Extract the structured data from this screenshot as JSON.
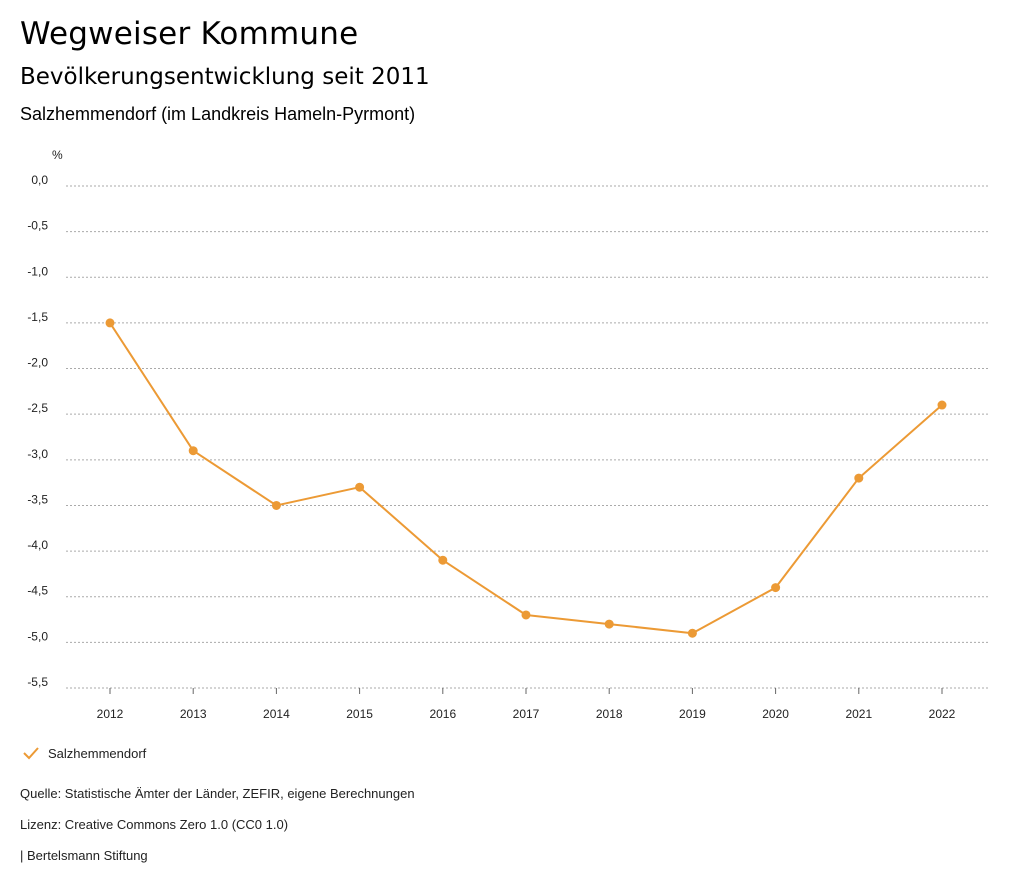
{
  "header": {
    "title": "Wegweiser Kommune",
    "subtitle": "Bevölkerungsentwicklung seit 2011",
    "region": "Salzhemmendorf (im Landkreis Hameln-Pyrmont)"
  },
  "legend": {
    "label": "Salzhemmendorf"
  },
  "footer": {
    "source": "Quelle: Statistische Ämter der Länder, ZEFIR, eigene Berechnungen",
    "license": "Lizenz: Creative Commons Zero 1.0 (CC0 1.0)",
    "publisher": "| Bertelsmann Stiftung"
  },
  "colors": {
    "series": "#EC9A35",
    "grid": "#AAAAAA",
    "text": "#222222"
  },
  "chart_data": {
    "type": "line",
    "title": "Bevölkerungsentwicklung seit 2011",
    "ylabel": "%",
    "xlabel": "",
    "ylim": [
      -5.5,
      0.0
    ],
    "yticks": [
      0.0,
      -0.5,
      -1.0,
      -1.5,
      -2.0,
      -2.5,
      -3.0,
      -3.5,
      -4.0,
      -4.5,
      -5.0,
      -5.5
    ],
    "ytick_labels": [
      "0,0",
      "-0,5",
      "-1,0",
      "-1,5",
      "-2,0",
      "-2,5",
      "-3,0",
      "-3,5",
      "-4,0",
      "-4,5",
      "-5,0",
      "-5,5"
    ],
    "categories": [
      "2012",
      "2013",
      "2014",
      "2015",
      "2016",
      "2017",
      "2018",
      "2019",
      "2020",
      "2021",
      "2022"
    ],
    "grid": true,
    "legend": "bottom-left",
    "series": [
      {
        "name": "Salzhemmendorf",
        "values": [
          -1.5,
          -2.9,
          -3.5,
          -3.3,
          -4.1,
          -4.7,
          -4.8,
          -4.9,
          -4.4,
          -3.2,
          -2.4
        ]
      }
    ]
  }
}
